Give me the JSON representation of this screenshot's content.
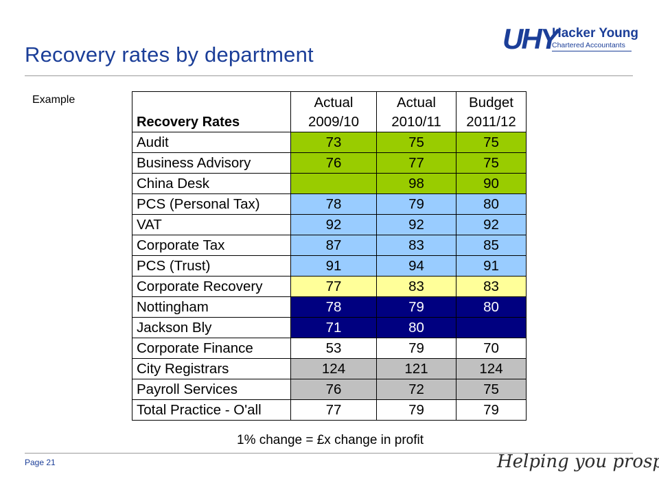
{
  "slide": {
    "title": "Recovery rates by department",
    "example_label": "Example",
    "caption": "1% change = £x change in profit",
    "page_label": "Page 21",
    "tagline": "Helping you prosper"
  },
  "logo": {
    "mark": "UHY",
    "name": "Hacker Young",
    "subtitle": "Chartered Accountants"
  },
  "colors": {
    "brand_blue": "#1b3e98",
    "green": "#99cc00",
    "light_blue": "#99ccff",
    "pale_yellow": "#ffff99",
    "navy": "#000080",
    "gray": "#c0c0c0",
    "white": "#ffffff"
  },
  "table": {
    "header_label": "Recovery Rates",
    "columns": [
      {
        "line1": "Actual",
        "line2": "2009/10"
      },
      {
        "line1": "Actual",
        "line2": "2010/11"
      },
      {
        "line1": "Budget",
        "line2": "2011/12"
      }
    ],
    "rows": [
      {
        "label": "Audit",
        "values": [
          "73",
          "75",
          "75"
        ],
        "fills": [
          "green",
          "green",
          "green"
        ]
      },
      {
        "label": "Business Advisory",
        "values": [
          "76",
          "77",
          "75"
        ],
        "fills": [
          "green",
          "green",
          "green"
        ]
      },
      {
        "label": "China Desk",
        "values": [
          "",
          "98",
          "90"
        ],
        "fills": [
          "green",
          "green",
          "green"
        ]
      },
      {
        "label": "PCS (Personal Tax)",
        "values": [
          "78",
          "79",
          "80"
        ],
        "fills": [
          "light_blue",
          "light_blue",
          "light_blue"
        ]
      },
      {
        "label": "VAT",
        "values": [
          "92",
          "92",
          "92"
        ],
        "fills": [
          "light_blue",
          "light_blue",
          "light_blue"
        ]
      },
      {
        "label": "Corporate Tax",
        "values": [
          "87",
          "83",
          "85"
        ],
        "fills": [
          "light_blue",
          "light_blue",
          "light_blue"
        ]
      },
      {
        "label": "PCS (Trust)",
        "values": [
          "91",
          "94",
          "91"
        ],
        "fills": [
          "light_blue",
          "light_blue",
          "light_blue"
        ]
      },
      {
        "label": "Corporate Recovery",
        "values": [
          "77",
          "83",
          "83"
        ],
        "fills": [
          "pale_yellow",
          "pale_yellow",
          "pale_yellow"
        ]
      },
      {
        "label": "Nottingham",
        "values": [
          "78",
          "79",
          "80"
        ],
        "fills": [
          "navy",
          "navy",
          "navy"
        ]
      },
      {
        "label": "Jackson Bly",
        "values": [
          "71",
          "80",
          ""
        ],
        "fills": [
          "navy",
          "navy",
          "navy"
        ]
      },
      {
        "label": "Corporate Finance",
        "values": [
          "53",
          "79",
          "70"
        ],
        "fills": [
          "white",
          "white",
          "white"
        ]
      },
      {
        "label": "City Registrars",
        "values": [
          "124",
          "121",
          "124"
        ],
        "fills": [
          "gray",
          "gray",
          "gray"
        ]
      },
      {
        "label": "Payroll Services",
        "values": [
          "76",
          "72",
          "75"
        ],
        "fills": [
          "gray",
          "gray",
          "gray"
        ]
      },
      {
        "label": "Total Practice - O'all",
        "values": [
          "77",
          "79",
          "79"
        ],
        "fills": [
          "white",
          "white",
          "white"
        ]
      }
    ]
  }
}
